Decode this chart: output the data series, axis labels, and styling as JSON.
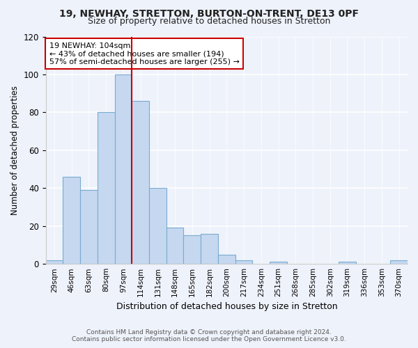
{
  "title1": "19, NEWHAY, STRETTON, BURTON-ON-TRENT, DE13 0PF",
  "title2": "Size of property relative to detached houses in Stretton",
  "xlabel": "Distribution of detached houses by size in Stretton",
  "ylabel": "Number of detached properties",
  "categories": [
    "29sqm",
    "46sqm",
    "63sqm",
    "80sqm",
    "97sqm",
    "114sqm",
    "131sqm",
    "148sqm",
    "165sqm",
    "182sqm",
    "200sqm",
    "217sqm",
    "234sqm",
    "251sqm",
    "268sqm",
    "285sqm",
    "302sqm",
    "319sqm",
    "336sqm",
    "353sqm",
    "370sqm"
  ],
  "values": [
    2,
    46,
    39,
    80,
    100,
    86,
    40,
    19,
    15,
    16,
    5,
    2,
    0,
    1,
    0,
    0,
    0,
    1,
    0,
    0,
    2
  ],
  "bar_color": "#c5d8f0",
  "bar_edge_color": "#7aaad0",
  "marker_line_index": 5,
  "marker_label": "19 NEWHAY: 104sqm",
  "annotation_line1": "← 43% of detached houses are smaller (194)",
  "annotation_line2": "57% of semi-detached houses are larger (255) →",
  "annotation_box_edge": "#cc0000",
  "ylim": [
    0,
    120
  ],
  "yticks": [
    0,
    20,
    40,
    60,
    80,
    100,
    120
  ],
  "footer1": "Contains HM Land Registry data © Crown copyright and database right 2024.",
  "footer2": "Contains public sector information licensed under the Open Government Licence v3.0.",
  "bg_color": "#eef2fb"
}
